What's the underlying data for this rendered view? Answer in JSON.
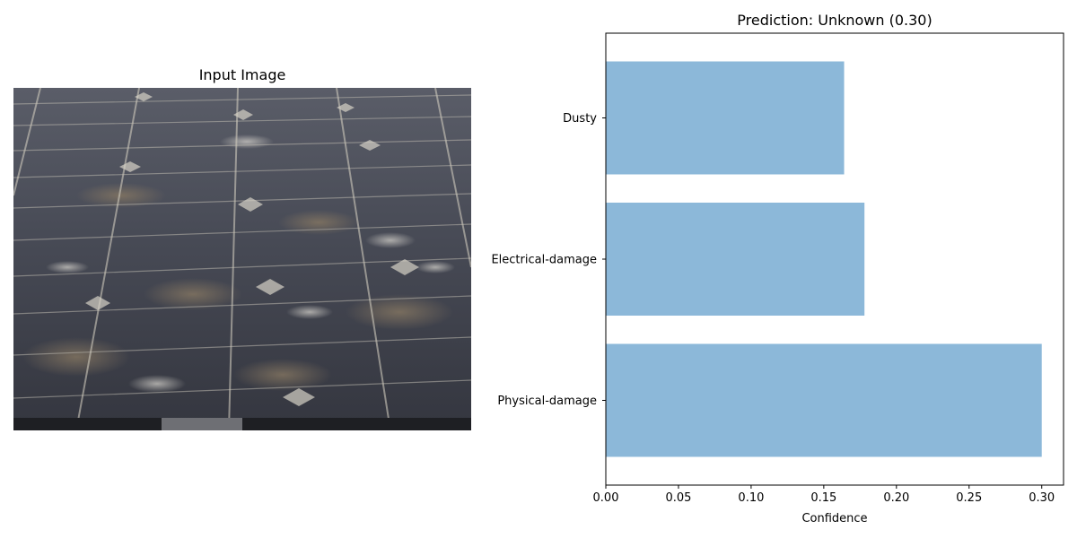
{
  "left_panel": {
    "title": "Input Image",
    "image_subject": "solar-panel-photo"
  },
  "chart_data": {
    "type": "bar",
    "orientation": "horizontal",
    "title": "Prediction: Unknown (0.30)",
    "categories": [
      "Physical-damage",
      "Electrical-damage",
      "Dusty"
    ],
    "values": [
      0.3,
      0.178,
      0.164
    ],
    "xlabel": "Confidence",
    "ylabel": "",
    "xlim": [
      0,
      0.315
    ],
    "xticks": [
      "0.00",
      "0.05",
      "0.10",
      "0.15",
      "0.20",
      "0.25",
      "0.30"
    ],
    "xtick_values": [
      0,
      0.05,
      0.1,
      0.15,
      0.2,
      0.25,
      0.3
    ],
    "grid": false,
    "bar_color": "#8cb8d9"
  }
}
